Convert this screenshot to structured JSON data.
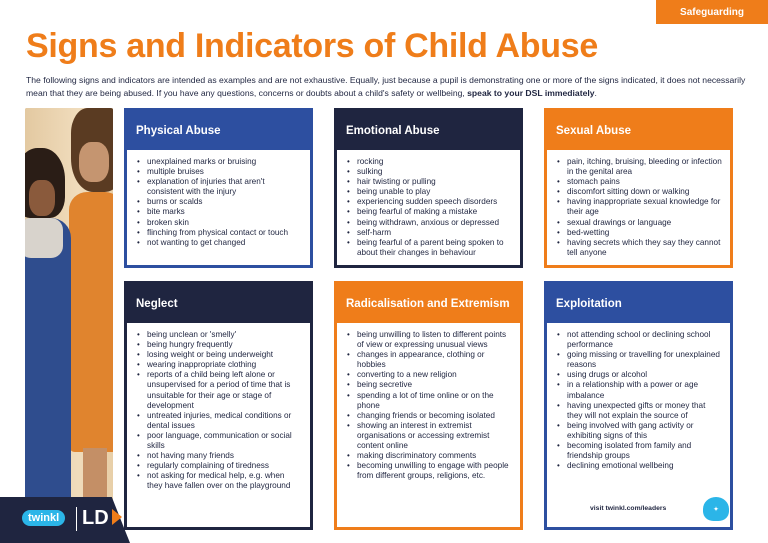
{
  "tag": "Safeguarding",
  "title": "Signs and Indicators of Child Abuse",
  "intro": {
    "text": "The following signs and indicators are intended as examples and are not exhaustive. Equally, just because a pupil is demonstrating one or more of the signs indicated, it does not necessarily mean that they are being abused. If you have any questions, concerns or doubts about a child's safety or wellbeing, ",
    "emphasis": "speak to your DSL immediately",
    "end": "."
  },
  "panels": {
    "physical": {
      "title": "Physical Abuse",
      "items": [
        "unexplained marks or bruising",
        "multiple bruises",
        "explanation of injuries that aren't consistent with the injury",
        "burns or scalds",
        "bite marks",
        "broken skin",
        "flinching from physical contact or touch",
        "not wanting to get changed"
      ]
    },
    "emotional": {
      "title": "Emotional Abuse",
      "items": [
        "rocking",
        "sulking",
        "hair twisting or pulling",
        "being unable to play",
        "experiencing sudden speech disorders",
        "being fearful of making a mistake",
        "being withdrawn, anxious or depressed",
        "self-harm",
        "being fearful of a parent being spoken to about their changes in behaviour"
      ]
    },
    "sexual": {
      "title": "Sexual Abuse",
      "items": [
        "pain, itching, bruising, bleeding or infection in the genital area",
        "stomach pains",
        "discomfort sitting down or walking",
        "having inappropriate sexual knowledge for their age",
        "sexual drawings or language",
        "bed-wetting",
        "having secrets which they say they cannot tell anyone"
      ]
    },
    "neglect": {
      "title": "Neglect",
      "items": [
        "being unclean or 'smelly'",
        "being hungry frequently",
        "losing weight or being underweight",
        "wearing inappropriate clothing",
        "reports of a child being left alone or unsupervised for a period of time that is unsuitable for their age or stage of development",
        "untreated injuries, medical conditions or dental issues",
        "poor language, communication or social skills",
        "not having many friends",
        "regularly complaining of tiredness",
        "not asking for medical help, e.g. when they have fallen over on the playground"
      ]
    },
    "radical": {
      "title": "Radicalisation and Extremism",
      "items": [
        "being unwilling to listen to different points of view or expressing unusual views",
        "changes in appearance, clothing or hobbies",
        "converting to a new religion",
        "being secretive",
        "spending a lot of time online or on the phone",
        "changing friends or becoming isolated",
        "showing an interest in extremist organisations or accessing extremist content online",
        "making discriminatory comments",
        "becoming unwilling to engage with people from different groups, religions, etc."
      ]
    },
    "exploit": {
      "title": "Exploitation",
      "items": [
        "not attending school or declining school performance",
        "going missing or travelling for unexplained reasons",
        "using drugs or alcohol",
        "in a relationship with a power or age imbalance",
        "having unexpected gifts or money that they will not explain the source of",
        "being involved with gang activity or exhibiting signs of this",
        "becoming isolated from family and friendship groups",
        "declining emotional wellbeing"
      ]
    }
  },
  "footer": {
    "brand": "twinkl",
    "ld": "LD",
    "visit": "visit twinkl.com/leaders"
  },
  "colors": {
    "orange": "#ef7d1a",
    "blue": "#2d4fa0",
    "navy": "#1f2540"
  }
}
